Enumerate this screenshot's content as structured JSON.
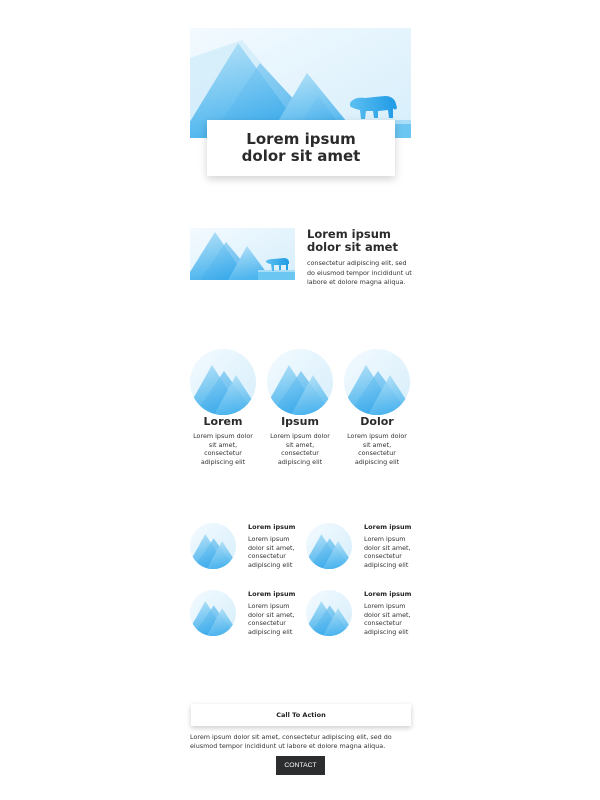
{
  "hero": {
    "title": "Lorem ipsum dolor sit amet"
  },
  "feature": {
    "title": "Lorem ipsum dolor sit amet",
    "body": "consectetur adipiscing elit, sed do eiusmod tempor incididunt ut labore et dolore magna aliqua."
  },
  "columns": [
    {
      "title": "Lorem",
      "body": "Lorem ipsum dolor sit amet, consectetur adipiscing elit"
    },
    {
      "title": "Ipsum",
      "body": "Lorem ipsum dolor sit amet, consectetur adipiscing elit"
    },
    {
      "title": "Dolor",
      "body": "Lorem ipsum dolor sit amet, consectetur adipiscing elit"
    }
  ],
  "grid_items": [
    {
      "title": "Lorem ipsum",
      "body": "Lorem ipsum dolor sit amet, consectetur adipiscing elit"
    },
    {
      "title": "Lorem ipsum",
      "body": "Lorem ipsum dolor sit amet, consectetur adipiscing elit"
    },
    {
      "title": "Lorem ipsum",
      "body": "Lorem ipsum dolor sit amet, consectetur adipiscing elit"
    },
    {
      "title": "Lorem ipsum",
      "body": "Lorem ipsum dolor sit amet, consectetur adipiscing elit"
    }
  ],
  "cta": {
    "label": "Call To Action",
    "body": "Lorem ipsum dolor sit amet, consectetur adipiscing elit, sed do eiusmod tempor incididunt ut labore et dolore magna aliqua.",
    "button_label": "CONTACT"
  },
  "colors": {
    "sky": "#e6f4fc",
    "mountain_light": "#9fd8f5",
    "mountain_dark": "#36a9ea",
    "button_bg": "#2b2d2f"
  },
  "icons": {
    "hero": "mountain-bear-illustration",
    "thumb": "mountain-circle-icon"
  }
}
